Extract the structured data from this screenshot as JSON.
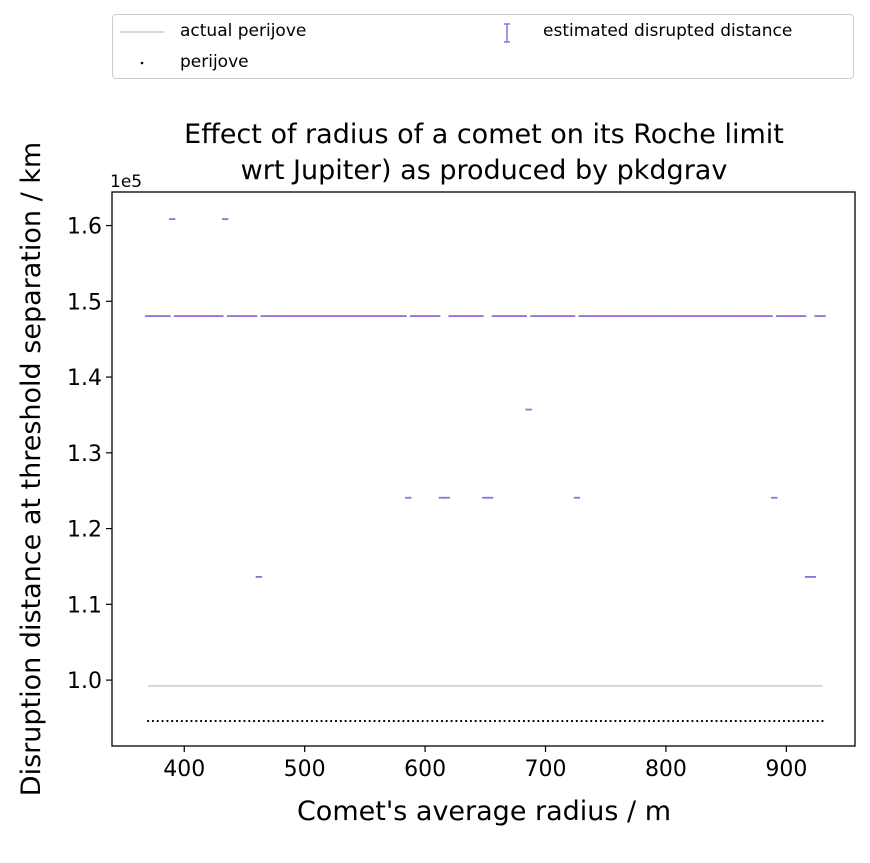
{
  "chart_data": {
    "type": "scatter",
    "title": "Effect of radius of a comet on its Roche limit\nwrt Jupiter) as produced by pkdgrav",
    "xlabel": "Comet's average radius / m",
    "ylabel": "Disruption distance at threshold separation / km",
    "y_offset_label": "1e5",
    "xlim": [
      340,
      957
    ],
    "ylim": [
      0.913,
      1.6443
    ],
    "x_ticks": [
      400,
      500,
      600,
      700,
      800,
      900
    ],
    "x_tick_labels": [
      "400",
      "500",
      "600",
      "700",
      "800",
      "900"
    ],
    "y_ticks": [
      1.0,
      1.1,
      1.2,
      1.3,
      1.4,
      1.5,
      1.6
    ],
    "y_tick_labels": [
      "1.0",
      "1.1",
      "1.2",
      "1.3",
      "1.4",
      "1.5",
      "1.6"
    ],
    "radius_range": [
      370,
      930
    ],
    "radius_step": 4,
    "series": [
      {
        "name": "actual perijove",
        "kind": "line",
        "color": "#cccccc",
        "x": [
          370,
          930
        ],
        "y": [
          0.9924,
          0.9924
        ]
      },
      {
        "name": "perijove",
        "kind": "points",
        "color": "#000000",
        "y_constant": 0.946
      },
      {
        "name": "estimated disrupted distance",
        "kind": "errorbar",
        "color": "#9370DB",
        "y_default": 1.4805,
        "exceptions": [
          {
            "x": 390,
            "y": 1.6085
          },
          {
            "x": 434,
            "y": 1.6085
          },
          {
            "x": 462,
            "y": 1.1362
          },
          {
            "x": 586,
            "y": 1.2407
          },
          {
            "x": 590,
            "y": 1.4805
          },
          {
            "x": 614,
            "y": 1.2407
          },
          {
            "x": 618,
            "y": 1.2407
          },
          {
            "x": 650,
            "y": 1.2407
          },
          {
            "x": 654,
            "y": 1.2407
          },
          {
            "x": 686,
            "y": 1.3571
          },
          {
            "x": 726,
            "y": 1.2407
          },
          {
            "x": 890,
            "y": 1.2407
          },
          {
            "x": 918,
            "y": 1.1362
          },
          {
            "x": 922,
            "y": 1.1362
          }
        ]
      }
    ],
    "legend_position": "top"
  }
}
